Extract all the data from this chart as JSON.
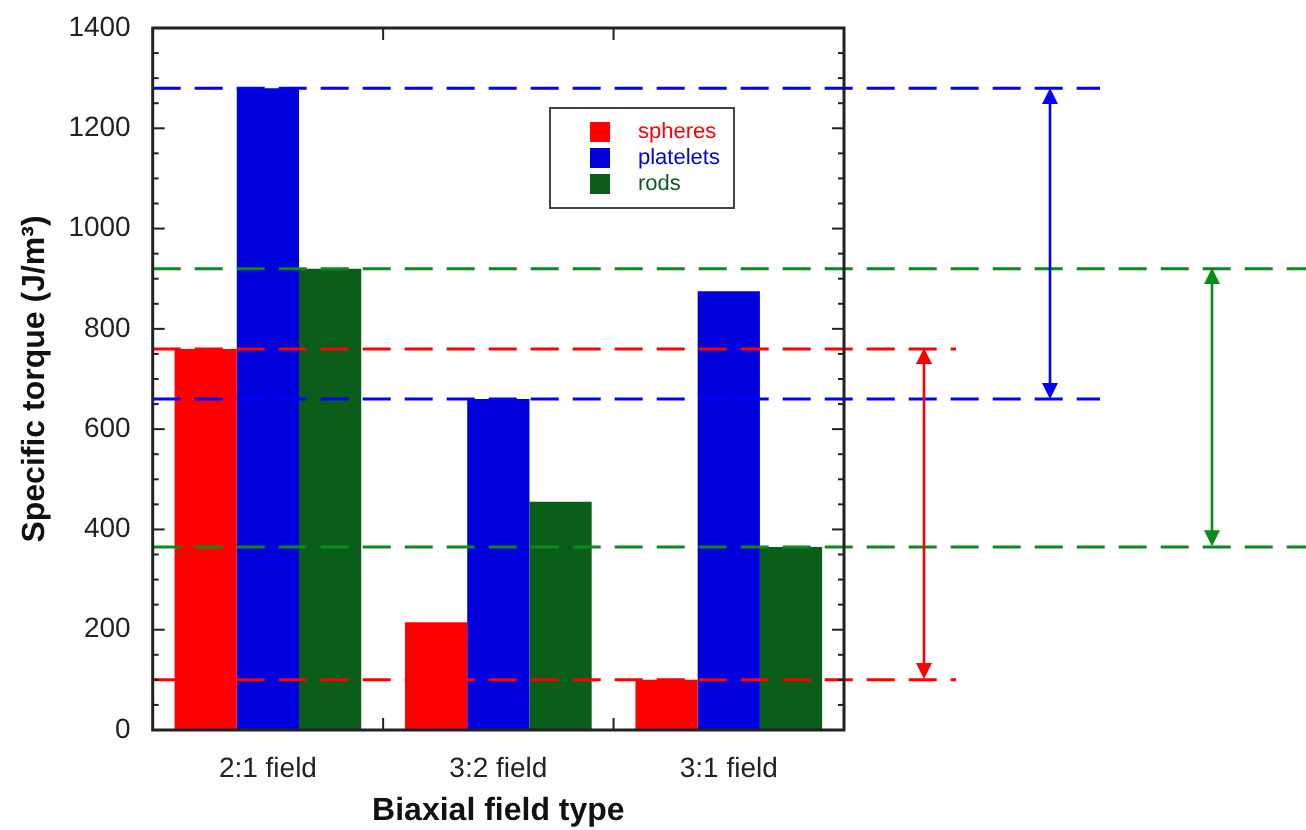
{
  "chart_data": {
    "type": "bar",
    "xlabel": "Biaxial field type",
    "ylabel": "Specific torque (J/m³)",
    "categories": [
      "2:1 field",
      "3:2 field",
      "3:1 field"
    ],
    "series": [
      {
        "name": "spheres",
        "color": "#ff0000",
        "values": [
          760,
          215,
          100
        ]
      },
      {
        "name": "platelets",
        "color": "#0000dd",
        "values": [
          1280,
          660,
          875
        ]
      },
      {
        "name": "rods",
        "color": "#0a5e1a",
        "values": [
          920,
          455,
          365
        ]
      }
    ],
    "ylim": [
      0,
      1400
    ],
    "yticks": [
      0,
      {
        "value": 50,
        "label": null
      },
      200,
      {
        "value": 100,
        "label": null
      },
      {
        "value": 150,
        "label": null
      },
      {
        "value": 250,
        "label": null
      },
      {
        "value": 300,
        "label": null
      },
      {
        "value": 350,
        "label": null
      },
      400,
      {
        "value": 450,
        "label": null
      },
      {
        "value": 500,
        "label": null
      },
      {
        "value": 550,
        "label": null
      },
      600,
      {
        "value": 650,
        "label": null
      },
      {
        "value": 700,
        "label": null
      },
      {
        "value": 750,
        "label": null
      },
      800,
      {
        "value": 850,
        "label": null
      },
      {
        "value": 900,
        "label": null
      },
      {
        "value": 950,
        "label": null
      },
      1000,
      {
        "value": 1050,
        "label": null
      },
      {
        "value": 1100,
        "label": null
      },
      {
        "value": 1150,
        "label": null
      },
      1200,
      {
        "value": 1250,
        "label": null
      },
      {
        "value": 1300,
        "label": null
      },
      {
        "value": 1350,
        "label": null
      },
      1400
    ],
    "ref_lines": [
      {
        "axis": "y",
        "value": 1280,
        "color": "#0000ff",
        "line_style": "dashed"
      },
      {
        "axis": "y",
        "value": 660,
        "color": "#0000ff",
        "line_style": "dashed"
      },
      {
        "axis": "y",
        "value": 920,
        "color": "#0a8a1a",
        "line_style": "dashed"
      },
      {
        "axis": "y",
        "value": 365,
        "color": "#0a8a1a",
        "line_style": "dashed"
      },
      {
        "axis": "y",
        "value": 760,
        "color": "#ff0000",
        "line_style": "dashed"
      },
      {
        "axis": "y",
        "value": 100,
        "color": "#ff0000",
        "line_style": "dashed"
      }
    ],
    "legend": "top right"
  }
}
